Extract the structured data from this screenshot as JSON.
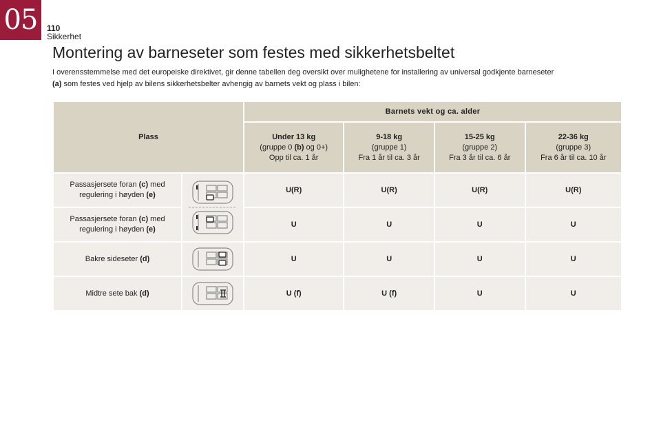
{
  "chapter": "05",
  "page_number": "110",
  "section": "Sikkerhet",
  "title": "Montering av barneseter som festes med sikkerhetsbeltet",
  "intro_part1": "I overensstemmelse med det europeiske direktivet, gir denne tabellen deg oversikt over mulighetene for installering av universal godkjente barneseter",
  "intro_ref": "(a)",
  "intro_part2": " som festes ved hjelp av bilens sikkerhetsbelter avhengig av barnets vekt og plass i bilen:",
  "table": {
    "col_place": "Plass",
    "col_weight": "Barnets vekt og ca. alder",
    "groups": [
      {
        "weight": "Under 13 kg",
        "group_pre": "(gruppe 0 ",
        "group_ref": "(b)",
        "group_post": " og 0+)",
        "age": "Opp til ca. 1 år"
      },
      {
        "weight": "9-18 kg",
        "group_pre": "(gruppe 1)",
        "group_ref": "",
        "group_post": "",
        "age": "Fra 1 år til ca. 3 år"
      },
      {
        "weight": "15-25 kg",
        "group_pre": "(gruppe 2)",
        "group_ref": "",
        "group_post": "",
        "age": "Fra 3 år til ca. 6 år"
      },
      {
        "weight": "22-36 kg",
        "group_pre": "(gruppe 3)",
        "group_ref": "",
        "group_post": "",
        "age": "Fra 6 år til ca. 10 år"
      }
    ],
    "rows": [
      {
        "label_pre": "Passasjersete foran ",
        "label_ref1": "(c)",
        "label_mid": " med regulering i høyden ",
        "label_ref2": "(e)",
        "icon": "car-front-passenger-seat-up-icon",
        "values": [
          "U(R)",
          "U(R)",
          "U(R)",
          "U(R)"
        ]
      },
      {
        "label_pre": "Passasjersete foran ",
        "label_ref1": "(c)",
        "label_mid": " med regulering i høyden ",
        "label_ref2": "(e)",
        "icon": "car-front-passenger-seat-down-icon",
        "values": [
          "U",
          "U",
          "U",
          "U"
        ]
      },
      {
        "label_pre": "Bakre sideseter ",
        "label_ref1": "(d)",
        "label_mid": "",
        "label_ref2": "",
        "icon": "car-rear-side-seats-icon",
        "values": [
          "U",
          "U",
          "U",
          "U"
        ]
      },
      {
        "label_pre": "Midtre sete bak ",
        "label_ref1": "(d)",
        "label_mid": "",
        "label_ref2": "",
        "icon": "car-rear-middle-seat-icon",
        "values": [
          "U (f)",
          "U (f)",
          "U",
          "U"
        ]
      }
    ]
  },
  "colors": {
    "accent": "#9b1b3a",
    "header_bg": "#d9d3c3",
    "cell_bg": "#f1eeea"
  }
}
